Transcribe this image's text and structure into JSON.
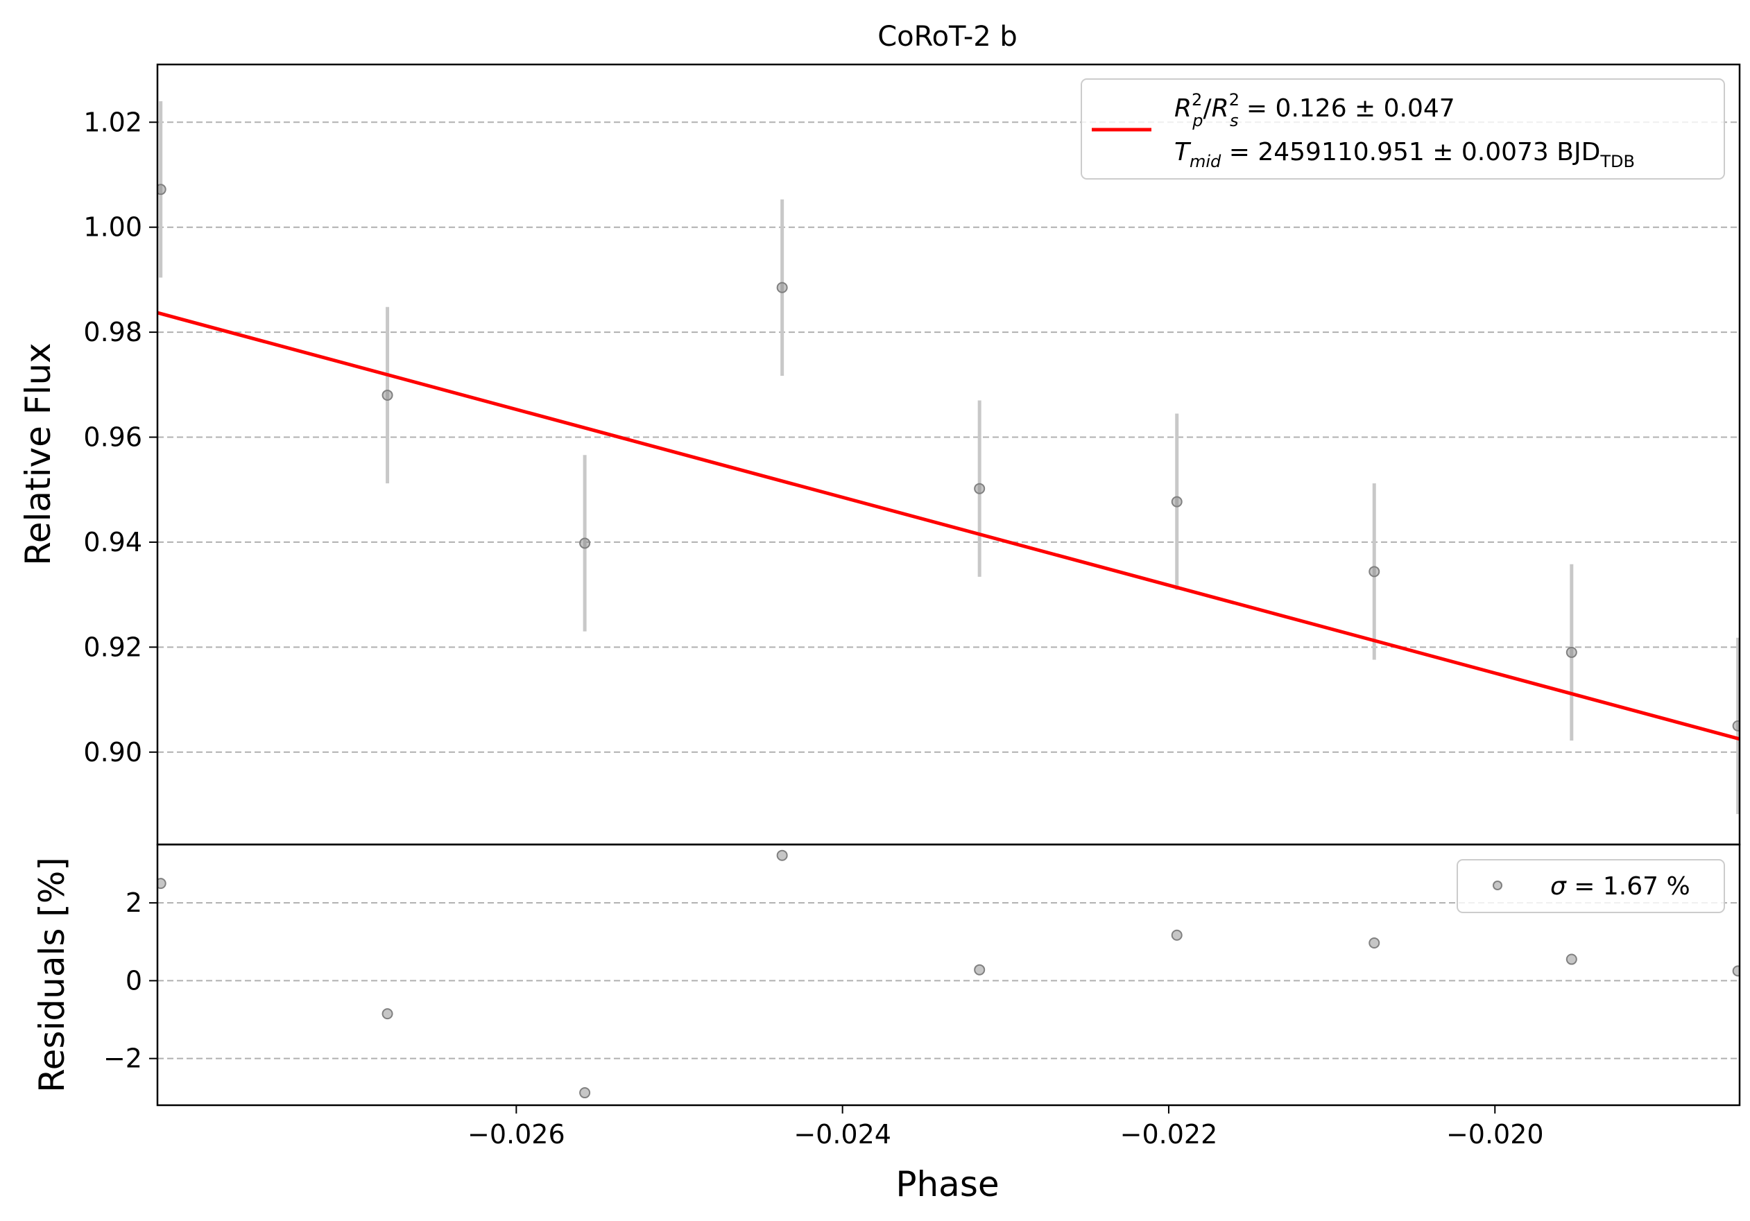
{
  "chart_data": [
    {
      "panel": "main",
      "type": "scatter",
      "title": "CoRoT-2 b",
      "xlabel": "",
      "ylabel": "Relative Flux",
      "xlim": [
        -0.0282,
        -0.0185
      ],
      "ylim": [
        0.8824,
        1.031
      ],
      "yticks": [
        0.9,
        0.92,
        0.94,
        0.96,
        0.98,
        1.0,
        1.02
      ],
      "ytick_labels": [
        "0.90",
        "0.92",
        "0.94",
        "0.96",
        "0.98",
        "1.00",
        "1.02"
      ],
      "grid": "y-dashed",
      "legend_position": "top-right",
      "data": {
        "x": [
          -0.02818,
          -0.02679,
          -0.02558,
          -0.02437,
          -0.02316,
          -0.02195,
          -0.02074,
          -0.01953,
          -0.01851
        ],
        "y": [
          1.0072,
          0.968,
          0.9398,
          0.9885,
          0.9502,
          0.9477,
          0.9344,
          0.919,
          0.905
        ],
        "yerr": [
          0.0168,
          0.0168,
          0.0168,
          0.0168,
          0.0168,
          0.0168,
          0.0168,
          0.0168,
          0.0168
        ],
        "color": "#808080"
      },
      "model": {
        "x": [
          -0.0282,
          -0.0185
        ],
        "y_start": 0.9837,
        "y_end": 0.9025,
        "color": "#ff0000",
        "legend_line1": {
          "lhs_main_1": "R",
          "lhs_sup_1": "2",
          "lhs_sub_1": "p",
          "lhs_sep": "/",
          "lhs_main_2": "R",
          "lhs_sup_2": "2",
          "lhs_sub_2": "s",
          "rhs": " = 0.126 ± 0.047"
        },
        "legend_line2": {
          "lhs_main": "T",
          "lhs_sub": "mid",
          "rhs": " = 2459110.951 ± 0.0073 BJD",
          "unit_sub": "TDB"
        }
      }
    },
    {
      "panel": "residuals",
      "type": "scatter",
      "xlabel": "Phase",
      "ylabel": "Residuals [%]",
      "xlim": [
        -0.0282,
        -0.0185
      ],
      "ylim": [
        -3.2,
        3.5
      ],
      "yticks": [
        -2,
        0,
        2
      ],
      "ytick_labels": [
        "−2",
        "0",
        "2"
      ],
      "xticks": [
        -0.026,
        -0.024,
        -0.022,
        -0.02
      ],
      "xtick_labels": [
        "−0.026",
        "−0.024",
        "−0.022",
        "−0.020"
      ],
      "grid": "y-dashed",
      "legend_position": "top-right",
      "data": {
        "x": [
          -0.02818,
          -0.02679,
          -0.02558,
          -0.02437,
          -0.02316,
          -0.02195,
          -0.02074,
          -0.01953,
          -0.01851
        ],
        "y": [
          2.5,
          -0.85,
          -2.88,
          3.22,
          0.28,
          1.17,
          0.97,
          0.55,
          0.25
        ],
        "color": "#808080"
      },
      "legend": {
        "symbol": "σ",
        "text": " = 1.67 %"
      }
    }
  ]
}
